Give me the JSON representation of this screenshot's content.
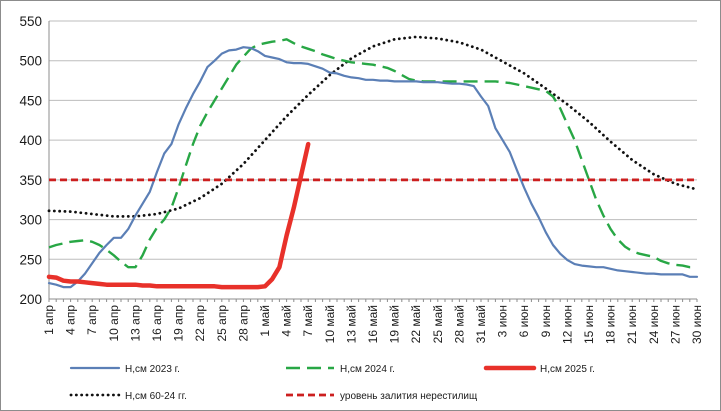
{
  "chart_data": {
    "type": "line",
    "title": "",
    "xlabel": "",
    "ylabel": "",
    "ylim": [
      200,
      550
    ],
    "yticks": [
      200,
      250,
      300,
      350,
      400,
      450,
      500,
      550
    ],
    "grid": true,
    "legend_position": "bottom",
    "x_start": "1 апр",
    "x_end": "30 июн",
    "x_tick_labels": [
      "1 апр",
      "4 апр",
      "7 апр",
      "10 апр",
      "13 апр",
      "16 апр",
      "19 апр",
      "22 апр",
      "25 апр",
      "28 апр",
      "1 май",
      "4 май",
      "7 май",
      "10 май",
      "13 май",
      "16 май",
      "19 май",
      "22 май",
      "25 май",
      "28 май",
      "31 май",
      "3 июн",
      "6 июн",
      "9 июн",
      "12 июн",
      "15 июн",
      "18 июн",
      "21 июн",
      "24 июн",
      "27 июн",
      "30 июн"
    ],
    "series": [
      {
        "name": "Н,см 2023 г.",
        "color": "#5b7fb6",
        "style": "solid",
        "points": [
          [
            "1 апр",
            220
          ],
          [
            "2 апр",
            218
          ],
          [
            "3 апр",
            215
          ],
          [
            "4 апр",
            215
          ],
          [
            "5 апр",
            222
          ],
          [
            "6 апр",
            232
          ],
          [
            "7 апр",
            245
          ],
          [
            "8 апр",
            258
          ],
          [
            "9 апр",
            268
          ],
          [
            "10 апр",
            277
          ],
          [
            "11 апр",
            277
          ],
          [
            "12 апр",
            288
          ],
          [
            "13 апр",
            305
          ],
          [
            "14 апр",
            320
          ],
          [
            "15 апр",
            335
          ],
          [
            "16 апр",
            360
          ],
          [
            "17 апр",
            383
          ],
          [
            "18 апр",
            395
          ],
          [
            "19 апр",
            420
          ],
          [
            "20 апр",
            440
          ],
          [
            "21 апр",
            458
          ],
          [
            "22 апр",
            474
          ],
          [
            "23 апр",
            492
          ],
          [
            "24 апр",
            500
          ],
          [
            "25 апр",
            509
          ],
          [
            "26 апр",
            513
          ],
          [
            "27 апр",
            514
          ],
          [
            "28 апр",
            517
          ],
          [
            "29 апр",
            516
          ],
          [
            "30 апр",
            512
          ],
          [
            "1 май",
            506
          ],
          [
            "2 май",
            504
          ],
          [
            "3 май",
            502
          ],
          [
            "4 май",
            498
          ],
          [
            "5 май",
            497
          ],
          [
            "6 май",
            497
          ],
          [
            "7 май",
            496
          ],
          [
            "8 май",
            493
          ],
          [
            "9 май",
            490
          ],
          [
            "10 май",
            485
          ],
          [
            "11 май",
            484
          ],
          [
            "12 май",
            481
          ],
          [
            "13 май",
            479
          ],
          [
            "14 май",
            478
          ],
          [
            "15 май",
            476
          ],
          [
            "16 май",
            476
          ],
          [
            "17 май",
            475
          ],
          [
            "18 май",
            475
          ],
          [
            "19 май",
            474
          ],
          [
            "20 май",
            474
          ],
          [
            "21 май",
            474
          ],
          [
            "22 май",
            474
          ],
          [
            "23 май",
            473
          ],
          [
            "24 май",
            473
          ],
          [
            "25 май",
            473
          ],
          [
            "26 май",
            472
          ],
          [
            "27 май",
            471
          ],
          [
            "28 май",
            471
          ],
          [
            "29 май",
            470
          ],
          [
            "30 май",
            468
          ],
          [
            "31 май",
            455
          ],
          [
            "1 июн",
            443
          ],
          [
            "2 июн",
            415
          ],
          [
            "3 июн",
            400
          ],
          [
            "4 июн",
            385
          ],
          [
            "5 июн",
            362
          ],
          [
            "6 июн",
            340
          ],
          [
            "7 июн",
            320
          ],
          [
            "8 июн",
            303
          ],
          [
            "9 июн",
            284
          ],
          [
            "10 июн",
            268
          ],
          [
            "11 июн",
            257
          ],
          [
            "12 июн",
            249
          ],
          [
            "13 июн",
            244
          ],
          [
            "14 июн",
            242
          ],
          [
            "15 июн",
            241
          ],
          [
            "16 июн",
            240
          ],
          [
            "17 июн",
            240
          ],
          [
            "18 июн",
            238
          ],
          [
            "19 июн",
            236
          ],
          [
            "20 июн",
            235
          ],
          [
            "21 июн",
            234
          ],
          [
            "22 июн",
            233
          ],
          [
            "23 июн",
            232
          ],
          [
            "24 июн",
            232
          ],
          [
            "25 июн",
            231
          ],
          [
            "26 июн",
            231
          ],
          [
            "27 июн",
            231
          ],
          [
            "28 июн",
            231
          ],
          [
            "29 июн",
            228
          ],
          [
            "30 июн",
            228
          ]
        ]
      },
      {
        "name": "Н,см 2024 г.",
        "color": "#28a745",
        "style": "dashed",
        "points": [
          [
            "1 апр",
            265
          ],
          [
            "2 апр",
            268
          ],
          [
            "3 апр",
            270
          ],
          [
            "4 апр",
            272
          ],
          [
            "5 апр",
            273
          ],
          [
            "6 апр",
            274
          ],
          [
            "7 апр",
            272
          ],
          [
            "8 апр",
            268
          ],
          [
            "9 апр",
            262
          ],
          [
            "10 апр",
            255
          ],
          [
            "11 апр",
            247
          ],
          [
            "12 апр",
            240
          ],
          [
            "13 апр",
            240
          ],
          [
            "14 апр",
            255
          ],
          [
            "15 апр",
            275
          ],
          [
            "16 апр",
            290
          ],
          [
            "17 апр",
            300
          ],
          [
            "18 апр",
            315
          ],
          [
            "19 апр",
            340
          ],
          [
            "20 апр",
            368
          ],
          [
            "21 апр",
            395
          ],
          [
            "22 апр",
            418
          ],
          [
            "23 апр",
            435
          ],
          [
            "24 апр",
            450
          ],
          [
            "25 апр",
            465
          ],
          [
            "26 апр",
            480
          ],
          [
            "27 апр",
            495
          ],
          [
            "28 апр",
            505
          ],
          [
            "29 апр",
            515
          ],
          [
            "30 апр",
            520
          ],
          [
            "1 май",
            522
          ],
          [
            "2 май",
            524
          ],
          [
            "3 май",
            525
          ],
          [
            "4 май",
            527
          ],
          [
            "5 май",
            522
          ],
          [
            "6 май",
            518
          ],
          [
            "7 май",
            515
          ],
          [
            "8 май",
            512
          ],
          [
            "9 май",
            508
          ],
          [
            "10 май",
            505
          ],
          [
            "11 май",
            502
          ],
          [
            "12 май",
            500
          ],
          [
            "13 май",
            498
          ],
          [
            "14 май",
            497
          ],
          [
            "15 май",
            496
          ],
          [
            "16 май",
            495
          ],
          [
            "17 май",
            493
          ],
          [
            "18 май",
            491
          ],
          [
            "19 май",
            487
          ],
          [
            "20 май",
            482
          ],
          [
            "21 май",
            477
          ],
          [
            "22 май",
            475
          ],
          [
            "23 май",
            474
          ],
          [
            "24 май",
            474
          ],
          [
            "25 май",
            474
          ],
          [
            "26 май",
            474
          ],
          [
            "27 май",
            474
          ],
          [
            "28 май",
            474
          ],
          [
            "29 май",
            474
          ],
          [
            "30 май",
            474
          ],
          [
            "31 май",
            474
          ],
          [
            "1 июн",
            474
          ],
          [
            "2 июн",
            474
          ],
          [
            "3 июн",
            473
          ],
          [
            "4 июн",
            472
          ],
          [
            "5 июн",
            470
          ],
          [
            "6 июн",
            468
          ],
          [
            "7 июн",
            466
          ],
          [
            "8 июн",
            464
          ],
          [
            "9 июн",
            462
          ],
          [
            "10 июн",
            455
          ],
          [
            "11 июн",
            440
          ],
          [
            "12 июн",
            420
          ],
          [
            "13 июн",
            400
          ],
          [
            "14 июн",
            375
          ],
          [
            "15 июн",
            350
          ],
          [
            "16 июн",
            325
          ],
          [
            "17 июн",
            305
          ],
          [
            "18 июн",
            288
          ],
          [
            "19 июн",
            275
          ],
          [
            "20 июн",
            266
          ],
          [
            "21 июн",
            260
          ],
          [
            "22 июн",
            257
          ],
          [
            "23 июн",
            255
          ],
          [
            "24 июн",
            253
          ],
          [
            "25 июн",
            248
          ],
          [
            "26 июн",
            245
          ],
          [
            "27 июн",
            243
          ],
          [
            "28 июн",
            242
          ],
          [
            "29 июн",
            240
          ],
          [
            "30 июн",
            240
          ]
        ]
      },
      {
        "name": "Н,см 2025 г.",
        "color": "#e8312a",
        "style": "thick",
        "points": [
          [
            "1 апр",
            228
          ],
          [
            "2 апр",
            227
          ],
          [
            "3 апр",
            223
          ],
          [
            "4 апр",
            222
          ],
          [
            "5 апр",
            222
          ],
          [
            "6 апр",
            221
          ],
          [
            "7 апр",
            220
          ],
          [
            "8 апр",
            219
          ],
          [
            "9 апр",
            218
          ],
          [
            "10 апр",
            218
          ],
          [
            "11 апр",
            218
          ],
          [
            "12 апр",
            218
          ],
          [
            "13 апр",
            218
          ],
          [
            "14 апр",
            217
          ],
          [
            "15 апр",
            217
          ],
          [
            "16 апр",
            216
          ],
          [
            "17 апр",
            216
          ],
          [
            "18 апр",
            216
          ],
          [
            "19 апр",
            216
          ],
          [
            "20 апр",
            216
          ],
          [
            "21 апр",
            216
          ],
          [
            "22 апр",
            216
          ],
          [
            "23 апр",
            216
          ],
          [
            "24 апр",
            216
          ],
          [
            "25 апр",
            215
          ],
          [
            "26 апр",
            215
          ],
          [
            "27 апр",
            215
          ],
          [
            "28 апр",
            215
          ],
          [
            "29 апр",
            215
          ],
          [
            "30 апр",
            215
          ],
          [
            "1 май",
            216
          ],
          [
            "2 май",
            225
          ],
          [
            "3 май",
            240
          ],
          [
            "4 май",
            280
          ],
          [
            "5 май",
            315
          ],
          [
            "6 май",
            355
          ],
          [
            "7 май",
            395
          ]
        ]
      },
      {
        "name": "Н,см 60-24 гг.",
        "color": "#111111",
        "style": "dotted",
        "points": [
          [
            "1 апр",
            311
          ],
          [
            "4 апр",
            310
          ],
          [
            "7 апр",
            307
          ],
          [
            "10 апр",
            304
          ],
          [
            "13 апр",
            304
          ],
          [
            "16 апр",
            307
          ],
          [
            "19 апр",
            314
          ],
          [
            "22 апр",
            327
          ],
          [
            "25 апр",
            345
          ],
          [
            "28 апр",
            370
          ],
          [
            "1 май",
            400
          ],
          [
            "4 май",
            430
          ],
          [
            "7 май",
            457
          ],
          [
            "10 май",
            482
          ],
          [
            "13 май",
            503
          ],
          [
            "16 май",
            518
          ],
          [
            "19 май",
            527
          ],
          [
            "22 май",
            530
          ],
          [
            "25 май",
            528
          ],
          [
            "28 май",
            523
          ],
          [
            "31 май",
            514
          ],
          [
            "3 июн",
            499
          ],
          [
            "6 июн",
            484
          ],
          [
            "9 июн",
            465
          ],
          [
            "12 июн",
            445
          ],
          [
            "15 июн",
            423
          ],
          [
            "18 июн",
            398
          ],
          [
            "21 июн",
            375
          ],
          [
            "24 июн",
            357
          ],
          [
            "27 июн",
            345
          ],
          [
            "30 июн",
            338
          ]
        ]
      },
      {
        "name": "уровень залития нерестилищ",
        "color": "#cc1f1f",
        "style": "red-dashed",
        "points": [
          [
            "1 апр",
            350
          ],
          [
            "30 июн",
            350
          ]
        ]
      }
    ]
  }
}
